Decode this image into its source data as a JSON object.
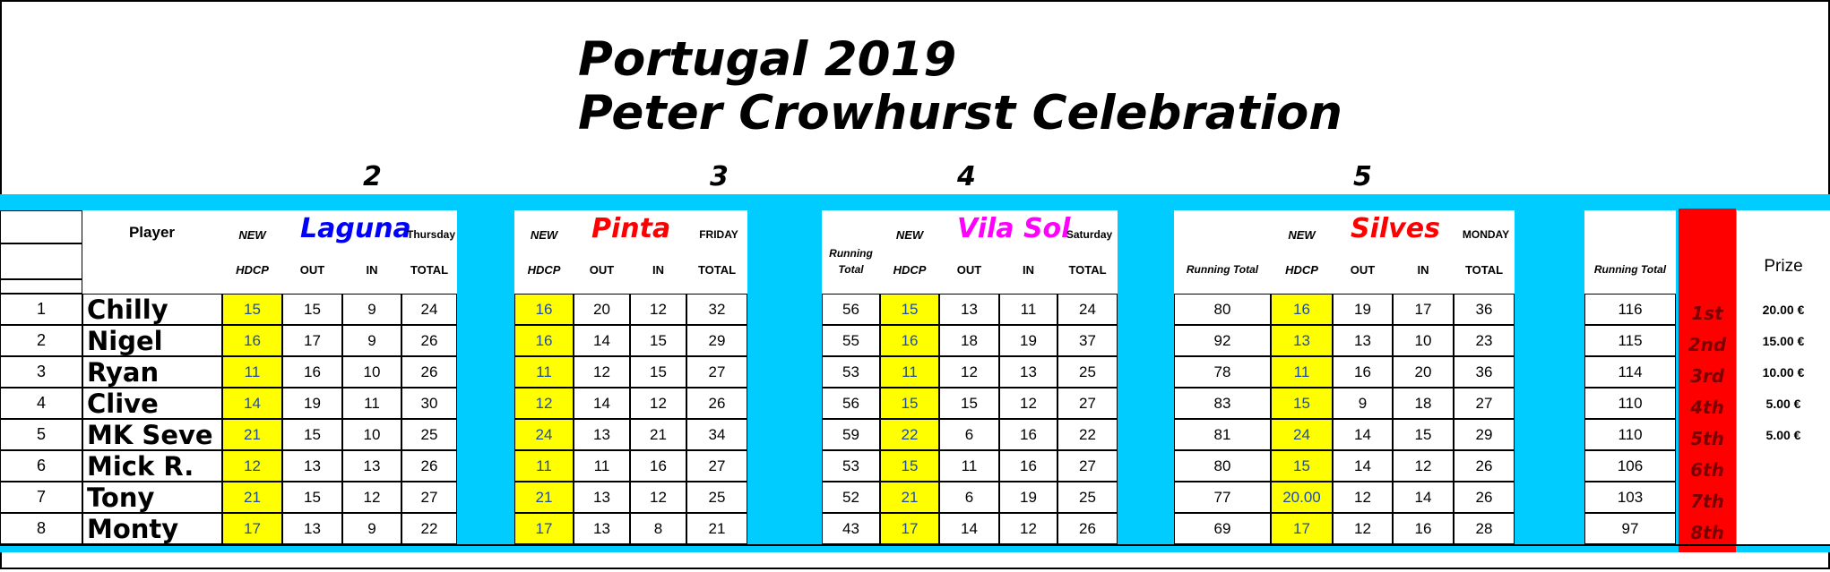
{
  "title": {
    "line1": "Portugal 2019",
    "line2": "Peter Crowhurst Celebration"
  },
  "round_numbers": [
    "2",
    "3",
    "4",
    "5"
  ],
  "headers": {
    "player": "Player",
    "new": "NEW",
    "hdcp": "HDCP",
    "out": "OUT",
    "in": "IN",
    "total": "TOTAL",
    "running_total": "Running Total",
    "running_total_split": [
      "Running",
      "Total"
    ],
    "prize": "Prize"
  },
  "courses": [
    {
      "name": "Laguna",
      "day": "Thursday",
      "color": "#0000ff"
    },
    {
      "name": "Pinta",
      "day": "FRIDAY",
      "color": "#ff0000"
    },
    {
      "name": "Vila Sol",
      "day": "Saturday",
      "color": "#ff00ff"
    },
    {
      "name": "Silves",
      "day": "MONDAY",
      "color": "#ff0000"
    }
  ],
  "rows": [
    {
      "no": "1",
      "player": "Chilly",
      "r2": [
        "15",
        "15",
        "9",
        "24"
      ],
      "r3": [
        "16",
        "20",
        "12",
        "32"
      ],
      "rt3": "56",
      "r4": [
        "15",
        "13",
        "11",
        "24"
      ],
      "rt4": "80",
      "r5": [
        "16",
        "19",
        "17",
        "36"
      ],
      "rt5": "116",
      "pos": "1st",
      "prize": "20.00 €"
    },
    {
      "no": "2",
      "player": "Nigel",
      "r2": [
        "16",
        "17",
        "9",
        "26"
      ],
      "r3": [
        "16",
        "14",
        "15",
        "29"
      ],
      "rt3": "55",
      "r4": [
        "16",
        "18",
        "19",
        "37"
      ],
      "rt4": "92",
      "r5": [
        "13",
        "13",
        "10",
        "23"
      ],
      "rt5": "115",
      "pos": "2nd",
      "prize": "15.00 €"
    },
    {
      "no": "3",
      "player": "Ryan",
      "r2": [
        "11",
        "16",
        "10",
        "26"
      ],
      "r3": [
        "11",
        "12",
        "15",
        "27"
      ],
      "rt3": "53",
      "r4": [
        "11",
        "12",
        "13",
        "25"
      ],
      "rt4": "78",
      "r5": [
        "11",
        "16",
        "20",
        "36"
      ],
      "rt5": "114",
      "pos": "3rd",
      "prize": "10.00 €"
    },
    {
      "no": "4",
      "player": "Clive",
      "r2": [
        "14",
        "19",
        "11",
        "30"
      ],
      "r3": [
        "12",
        "14",
        "12",
        "26"
      ],
      "rt3": "56",
      "r4": [
        "15",
        "15",
        "12",
        "27"
      ],
      "rt4": "83",
      "r5": [
        "15",
        "9",
        "18",
        "27"
      ],
      "rt5": "110",
      "pos": "4th",
      "prize": "5.00 €"
    },
    {
      "no": "5",
      "player": "MK Seve",
      "r2": [
        "21",
        "15",
        "10",
        "25"
      ],
      "r3": [
        "24",
        "13",
        "21",
        "34"
      ],
      "rt3": "59",
      "r4": [
        "22",
        "6",
        "16",
        "22"
      ],
      "rt4": "81",
      "r5": [
        "24",
        "14",
        "15",
        "29"
      ],
      "rt5": "110",
      "pos": "5th",
      "prize": "5.00 €"
    },
    {
      "no": "6",
      "player": "Mick R.",
      "r2": [
        "12",
        "13",
        "13",
        "26"
      ],
      "r3": [
        "11",
        "11",
        "16",
        "27"
      ],
      "rt3": "53",
      "r4": [
        "15",
        "11",
        "16",
        "27"
      ],
      "rt4": "80",
      "r5": [
        "15",
        "14",
        "12",
        "26"
      ],
      "rt5": "106",
      "pos": "6th",
      "prize": ""
    },
    {
      "no": "7",
      "player": "Tony",
      "r2": [
        "21",
        "15",
        "12",
        "27"
      ],
      "r3": [
        "21",
        "13",
        "12",
        "25"
      ],
      "rt3": "52",
      "r4": [
        "21",
        "6",
        "19",
        "25"
      ],
      "rt4": "77",
      "r5": [
        "20.00",
        "12",
        "14",
        "26"
      ],
      "rt5": "103",
      "pos": "7th",
      "prize": ""
    },
    {
      "no": "8",
      "player": "Monty",
      "r2": [
        "17",
        "13",
        "9",
        "22"
      ],
      "r3": [
        "17",
        "13",
        "8",
        "21"
      ],
      "rt3": "43",
      "r4": [
        "17",
        "14",
        "12",
        "26"
      ],
      "rt4": "69",
      "r5": [
        "17",
        "12",
        "16",
        "28"
      ],
      "rt5": "97",
      "pos": "8th",
      "prize": ""
    }
  ]
}
